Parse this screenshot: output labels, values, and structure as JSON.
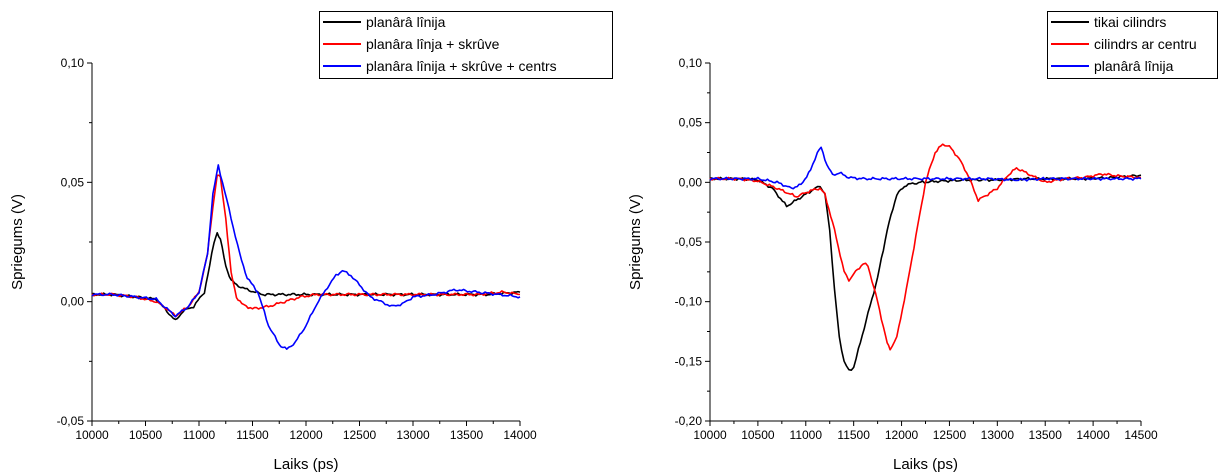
{
  "chart_data": [
    {
      "type": "line",
      "title": "",
      "xlabel": "Laiks (ps)",
      "ylabel": "Spriegums (V)",
      "xlim": [
        10000,
        14000
      ],
      "ylim": [
        -0.05,
        0.1
      ],
      "x_ticks": [
        10000,
        10500,
        11000,
        11500,
        12000,
        12500,
        13000,
        13500,
        14000
      ],
      "x_tick_labels": [
        "10000",
        "10500",
        "11000",
        "11500",
        "12000",
        "12500",
        "13000",
        "13500",
        "14000"
      ],
      "y_ticks": [
        -0.05,
        0,
        0.05,
        0.1
      ],
      "y_tick_labels": [
        "-0,05",
        "0,00",
        "0,05",
        "0,10"
      ],
      "grid": false,
      "legend_position": "top-right",
      "series": [
        {
          "name": "planârâ lînija",
          "color": "#000000",
          "points": [
            [
              10000,
              0.003
            ],
            [
              10200,
              0.003
            ],
            [
              10400,
              0.002
            ],
            [
              10600,
              0.001
            ],
            [
              10700,
              -0.004
            ],
            [
              10780,
              -0.008
            ],
            [
              10850,
              -0.004
            ],
            [
              10950,
              -0.002
            ],
            [
              11050,
              0.004
            ],
            [
              11100,
              0.015
            ],
            [
              11140,
              0.025
            ],
            [
              11170,
              0.029
            ],
            [
              11200,
              0.026
            ],
            [
              11250,
              0.015
            ],
            [
              11300,
              0.009
            ],
            [
              11350,
              0.007
            ],
            [
              11450,
              0.005
            ],
            [
              11600,
              0.003
            ],
            [
              11800,
              0.003
            ],
            [
              12000,
              0.003
            ],
            [
              12200,
              0.003
            ],
            [
              12500,
              0.003
            ],
            [
              12800,
              0.003
            ],
            [
              13100,
              0.003
            ],
            [
              13400,
              0.003
            ],
            [
              13700,
              0.003
            ],
            [
              14000,
              0.004
            ]
          ]
        },
        {
          "name": "planâra lînja + skrûve",
          "color": "#ff0000",
          "points": [
            [
              10000,
              0.003
            ],
            [
              10200,
              0.003
            ],
            [
              10400,
              0.002
            ],
            [
              10600,
              0.0
            ],
            [
              10700,
              -0.003
            ],
            [
              10780,
              -0.006
            ],
            [
              10900,
              -0.002
            ],
            [
              11000,
              0.004
            ],
            [
              11080,
              0.02
            ],
            [
              11130,
              0.04
            ],
            [
              11170,
              0.053
            ],
            [
              11200,
              0.052
            ],
            [
              11250,
              0.035
            ],
            [
              11300,
              0.012
            ],
            [
              11350,
              0.002
            ],
            [
              11400,
              -0.001
            ],
            [
              11500,
              -0.003
            ],
            [
              11650,
              -0.002
            ],
            [
              11800,
              0.0
            ],
            [
              11950,
              0.002
            ],
            [
              12100,
              0.003
            ],
            [
              12400,
              0.003
            ],
            [
              12700,
              0.003
            ],
            [
              13000,
              0.003
            ],
            [
              13300,
              0.003
            ],
            [
              13600,
              0.003
            ],
            [
              13850,
              0.004
            ],
            [
              14000,
              0.003
            ]
          ]
        },
        {
          "name": "planâra lînija + skrûve + centrs",
          "color": "#0000ff",
          "points": [
            [
              10000,
              0.003
            ],
            [
              10200,
              0.003
            ],
            [
              10400,
              0.002
            ],
            [
              10600,
              0.001
            ],
            [
              10700,
              -0.003
            ],
            [
              10780,
              -0.006
            ],
            [
              10900,
              -0.002
            ],
            [
              11000,
              0.004
            ],
            [
              11080,
              0.02
            ],
            [
              11130,
              0.045
            ],
            [
              11180,
              0.057
            ],
            [
              11220,
              0.05
            ],
            [
              11300,
              0.035
            ],
            [
              11380,
              0.02
            ],
            [
              11450,
              0.01
            ],
            [
              11550,
              0.004
            ],
            [
              11650,
              -0.01
            ],
            [
              11750,
              -0.018
            ],
            [
              11820,
              -0.02
            ],
            [
              11900,
              -0.017
            ],
            [
              12000,
              -0.01
            ],
            [
              12100,
              -0.001
            ],
            [
              12200,
              0.006
            ],
            [
              12280,
              0.011
            ],
            [
              12340,
              0.013
            ],
            [
              12420,
              0.011
            ],
            [
              12500,
              0.007
            ],
            [
              12600,
              0.002
            ],
            [
              12700,
              0.0
            ],
            [
              12800,
              -0.002
            ],
            [
              12900,
              -0.001
            ],
            [
              13000,
              0.002
            ],
            [
              13200,
              0.003
            ],
            [
              13400,
              0.005
            ],
            [
              13600,
              0.004
            ],
            [
              13800,
              0.003
            ],
            [
              14000,
              0.002
            ]
          ]
        }
      ]
    },
    {
      "type": "line",
      "title": "",
      "xlabel": "Laiks (ps)",
      "ylabel": "Spriegums (V)",
      "xlim": [
        10000,
        14500
      ],
      "ylim": [
        -0.2,
        0.1
      ],
      "x_ticks": [
        10000,
        10500,
        11000,
        11500,
        12000,
        12500,
        13000,
        13500,
        14000,
        14500
      ],
      "x_tick_labels": [
        "10000",
        "10500",
        "11000",
        "11500",
        "12000",
        "12500",
        "13000",
        "13500",
        "14000",
        "14500"
      ],
      "y_ticks": [
        -0.2,
        -0.15,
        -0.1,
        -0.05,
        0,
        0.05,
        0.1
      ],
      "y_tick_labels": [
        "-0,20",
        "-0,15",
        "-0,10",
        "-0,05",
        "0,00",
        "0,05",
        "0,10"
      ],
      "grid": false,
      "legend_position": "top-right",
      "series": [
        {
          "name": "tikai cilindrs",
          "color": "#000000",
          "points": [
            [
              10000,
              0.003
            ],
            [
              10300,
              0.003
            ],
            [
              10500,
              0.002
            ],
            [
              10650,
              -0.005
            ],
            [
              10800,
              -0.02
            ],
            [
              10900,
              -0.015
            ],
            [
              11000,
              -0.01
            ],
            [
              11100,
              -0.005
            ],
            [
              11150,
              -0.003
            ],
            [
              11200,
              -0.01
            ],
            [
              11250,
              -0.04
            ],
            [
              11300,
              -0.09
            ],
            [
              11350,
              -0.13
            ],
            [
              11400,
              -0.15
            ],
            [
              11450,
              -0.158
            ],
            [
              11500,
              -0.155
            ],
            [
              11550,
              -0.14
            ],
            [
              11650,
              -0.11
            ],
            [
              11750,
              -0.08
            ],
            [
              11850,
              -0.04
            ],
            [
              11950,
              -0.01
            ],
            [
              12050,
              -0.002
            ],
            [
              12200,
              0.0
            ],
            [
              12400,
              0.001
            ],
            [
              12700,
              0.002
            ],
            [
              13000,
              0.002
            ],
            [
              13300,
              0.003
            ],
            [
              13600,
              0.003
            ],
            [
              13900,
              0.003
            ],
            [
              14200,
              0.004
            ],
            [
              14500,
              0.006
            ]
          ]
        },
        {
          "name": "cilindrs ar centru",
          "color": "#ff0000",
          "points": [
            [
              10000,
              0.003
            ],
            [
              10300,
              0.003
            ],
            [
              10500,
              0.001
            ],
            [
              10700,
              -0.005
            ],
            [
              10900,
              -0.012
            ],
            [
              11050,
              -0.007
            ],
            [
              11150,
              -0.005
            ],
            [
              11200,
              -0.01
            ],
            [
              11300,
              -0.04
            ],
            [
              11400,
              -0.075
            ],
            [
              11450,
              -0.082
            ],
            [
              11520,
              -0.075
            ],
            [
              11600,
              -0.068
            ],
            [
              11650,
              -0.07
            ],
            [
              11750,
              -0.1
            ],
            [
              11850,
              -0.135
            ],
            [
              11880,
              -0.14
            ],
            [
              11950,
              -0.13
            ],
            [
              12050,
              -0.09
            ],
            [
              12150,
              -0.045
            ],
            [
              12250,
              0.0
            ],
            [
              12350,
              0.025
            ],
            [
              12430,
              0.032
            ],
            [
              12500,
              0.03
            ],
            [
              12600,
              0.02
            ],
            [
              12700,
              0.005
            ],
            [
              12800,
              -0.015
            ],
            [
              12900,
              -0.01
            ],
            [
              13000,
              -0.005
            ],
            [
              13100,
              0.005
            ],
            [
              13200,
              0.012
            ],
            [
              13300,
              0.008
            ],
            [
              13500,
              0.0
            ],
            [
              13700,
              0.003
            ],
            [
              13900,
              0.004
            ],
            [
              14100,
              0.007
            ],
            [
              14300,
              0.005
            ],
            [
              14500,
              0.004
            ]
          ]
        },
        {
          "name": "planârâ lînija",
          "color": "#0000ff",
          "points": [
            [
              10000,
              0.003
            ],
            [
              10300,
              0.003
            ],
            [
              10500,
              0.003
            ],
            [
              10700,
              0.0
            ],
            [
              10850,
              -0.005
            ],
            [
              10950,
              -0.002
            ],
            [
              11050,
              0.01
            ],
            [
              11120,
              0.025
            ],
            [
              11160,
              0.029
            ],
            [
              11220,
              0.015
            ],
            [
              11280,
              0.006
            ],
            [
              11350,
              0.008
            ],
            [
              11450,
              0.004
            ],
            [
              11600,
              0.003
            ],
            [
              11800,
              0.003
            ],
            [
              12000,
              0.003
            ],
            [
              12300,
              0.003
            ],
            [
              12600,
              0.003
            ],
            [
              12900,
              0.003
            ],
            [
              13200,
              0.002
            ],
            [
              13500,
              0.003
            ],
            [
              13800,
              0.003
            ],
            [
              14100,
              0.003
            ],
            [
              14500,
              0.003
            ]
          ]
        }
      ]
    }
  ]
}
